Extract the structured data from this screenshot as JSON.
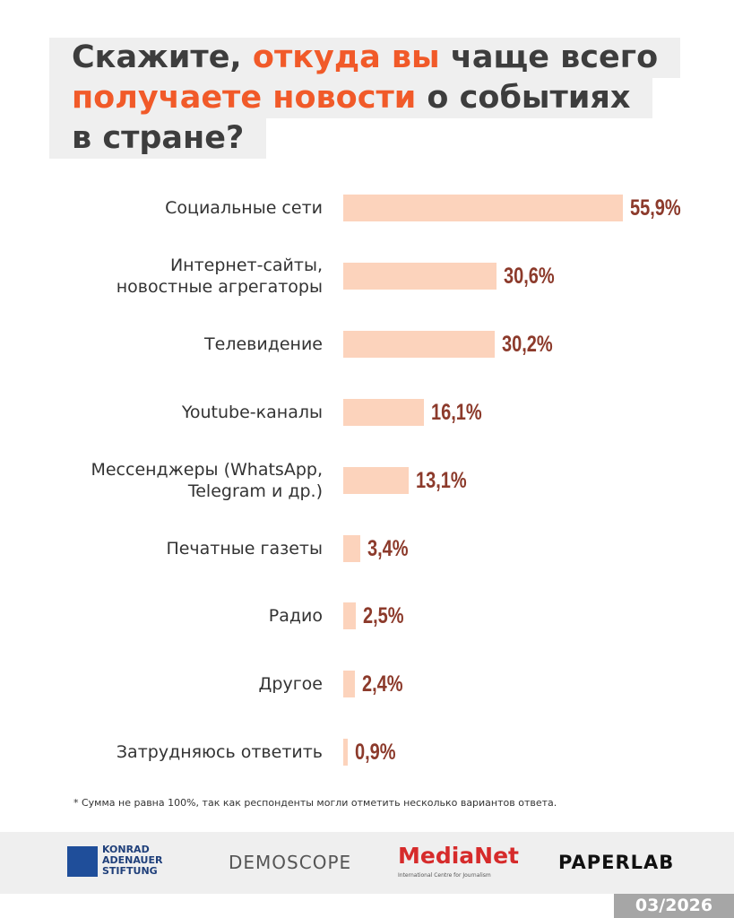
{
  "chart_data": {
    "type": "bar",
    "title_lines": [
      [
        {
          "text": "Скажите, ",
          "accent": false
        },
        {
          "text": "откуда вы",
          "accent": true
        },
        {
          "text": " чаще всего",
          "accent": false
        }
      ],
      [
        {
          "text": "получаете новости",
          "accent": true
        },
        {
          "text": " о событиях",
          "accent": false
        }
      ],
      [
        {
          "text": "в стране?",
          "accent": false
        }
      ]
    ],
    "accent_color": "#f15a29",
    "categories": [
      "Социальные сети",
      "Интернет-сайты,\nновостные агрегаторы",
      "Телевидение",
      "Youtube-каналы",
      "Мессенджеры (WhatsApp,\nTelegram и др.)",
      "Печатные газеты",
      "Радио",
      "Другое",
      "Затрудняюсь ответить"
    ],
    "values": [
      55.9,
      30.6,
      30.2,
      16.1,
      13.1,
      3.4,
      2.5,
      2.4,
      0.9
    ],
    "value_labels": [
      "55,9%",
      "30,6%",
      "30,2%",
      "16,1%",
      "13,1%",
      "3,4%",
      "2,5%",
      "2,4%",
      "0,9%"
    ],
    "color": "#fcd3bc",
    "label_color": "#8c3a2b",
    "footnote": "* Сумма не равна 100%, так как респонденты могли отметить несколько вариантов ответа."
  },
  "footer": {
    "logos": [
      "KONRAD\nADENAUER\nSTIFTUNG",
      "DEMOSCOPE",
      "MediaNet",
      "International Centre for Journalism",
      "PAPERLAB"
    ],
    "date": "03/2026"
  }
}
